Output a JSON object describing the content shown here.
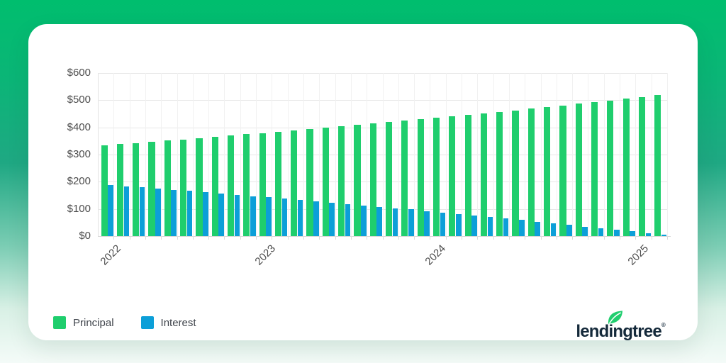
{
  "chart_data": {
    "type": "bar",
    "grouped": true,
    "n_bars": 36,
    "x_tick_labels": [
      "2022",
      "2023",
      "2024",
      "2025"
    ],
    "y_tick_labels": [
      "$0",
      "$100",
      "$200",
      "$300",
      "$400",
      "$500",
      "$600"
    ],
    "ylim": [
      0,
      600
    ],
    "grid": true,
    "legend_position": "bottom-left",
    "series": [
      {
        "name": "Principal",
        "color": "#1FCE6D",
        "values": [
          335,
          339,
          343,
          348,
          352,
          356,
          361,
          365,
          370,
          375,
          379,
          384,
          389,
          394,
          399,
          404,
          409,
          414,
          419,
          424,
          430,
          435,
          440,
          446,
          451,
          457,
          463,
          469,
          475,
          481,
          487,
          493,
          499,
          505,
          511,
          518
        ]
      },
      {
        "name": "Interest",
        "color": "#0C9FD8",
        "values": [
          187,
          183,
          179,
          174,
          170,
          166,
          161,
          157,
          152,
          147,
          143,
          138,
          133,
          128,
          123,
          118,
          113,
          108,
          103,
          98,
          92,
          87,
          82,
          76,
          71,
          65,
          59,
          53,
          47,
          41,
          35,
          29,
          23,
          17,
          11,
          4
        ]
      }
    ]
  },
  "legend": {
    "items": [
      {
        "label": "Principal",
        "color": "#1FCE6D"
      },
      {
        "label": "Interest",
        "color": "#0C9FD8"
      }
    ]
  },
  "logo": {
    "text": "lendingtree",
    "registered": "®",
    "leaf_color": "#21CE6F",
    "text_color": "#14293A"
  },
  "colors": {
    "background_top": "#00BE6E",
    "background_bottom": "#F4FBF8",
    "card": "#FFFFFF",
    "gridline": "#E7E7E7",
    "axis_text": "#4D4D4D"
  }
}
